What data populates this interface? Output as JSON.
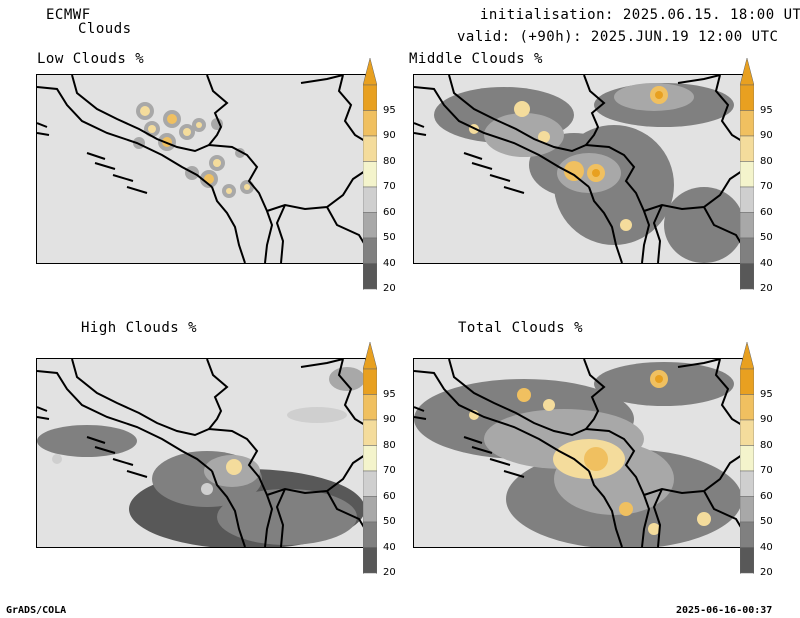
{
  "header": {
    "model": "ECMWF",
    "product": "Clouds",
    "initialisation": "initialisation: 2025.06.15. 18:00 UTC",
    "valid": "valid: (+90h): 2025.JUN.19 12:00 UTC"
  },
  "panels": [
    {
      "title": "Low Clouds %"
    },
    {
      "title": "Middle Clouds %"
    },
    {
      "title": "High Clouds %"
    },
    {
      "title": "Total Clouds %"
    }
  ],
  "colorbar": {
    "levels": [
      "95",
      "90",
      "80",
      "70",
      "60",
      "50",
      "40",
      "20"
    ],
    "colors": [
      "#e8a020",
      "#f0c060",
      "#f4dc9c",
      "#f4f4cc",
      "#cfcfcf",
      "#a8a8a8",
      "#808080",
      "#585858"
    ]
  },
  "colors": {
    "map_background": "#e2e2e2",
    "borders": "#000000"
  },
  "footer": {
    "left": "GrADS/COLA",
    "right": "2025-06-16-00:37"
  }
}
